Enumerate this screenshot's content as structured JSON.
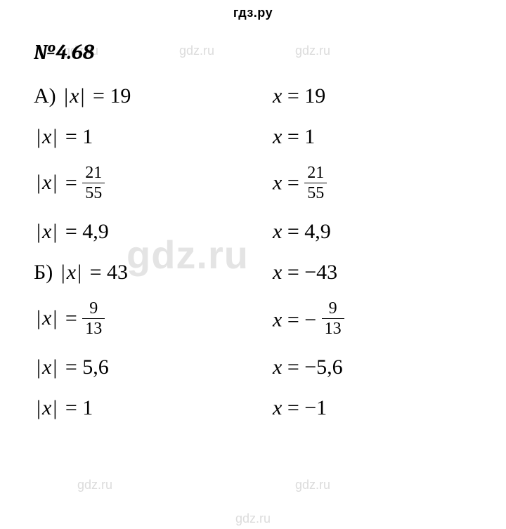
{
  "header": "гдз.ру",
  "problem_number": "№4.68",
  "watermark": {
    "small": "gdz.ru",
    "big": "gdz.ru"
  },
  "rows": [
    {
      "left_prefix": "А) ",
      "left_eq": "= 19",
      "left_frac": null,
      "right_eq": "= 19",
      "right_frac": null,
      "right_neg": false
    },
    {
      "left_prefix": "",
      "left_eq": "= 1",
      "left_frac": null,
      "right_eq": "= 1",
      "right_frac": null,
      "right_neg": false
    },
    {
      "left_prefix": "",
      "left_eq": "= ",
      "left_frac": {
        "num": "21",
        "den": "55"
      },
      "right_eq": "= ",
      "right_frac": {
        "num": "21",
        "den": "55"
      },
      "right_neg": false
    },
    {
      "left_prefix": "",
      "left_eq": "= 4,9",
      "left_frac": null,
      "right_eq": "= 4,9",
      "right_frac": null,
      "right_neg": false
    },
    {
      "left_prefix": "Б) ",
      "left_eq": "= 43",
      "left_frac": null,
      "right_eq": "= −43",
      "right_frac": null,
      "right_neg": false
    },
    {
      "left_prefix": "",
      "left_eq": "= ",
      "left_frac": {
        "num": "9",
        "den": "13"
      },
      "right_eq": "= ",
      "right_frac": {
        "num": "9",
        "den": "13"
      },
      "right_neg": true
    },
    {
      "left_prefix": "",
      "left_eq": "= 5,6",
      "left_frac": null,
      "right_eq": "= −5,6",
      "right_frac": null,
      "right_neg": false
    },
    {
      "left_prefix": "",
      "left_eq": "= 1",
      "left_frac": null,
      "right_eq": "= −1",
      "right_frac": null,
      "right_neg": false
    }
  ],
  "var": "x"
}
